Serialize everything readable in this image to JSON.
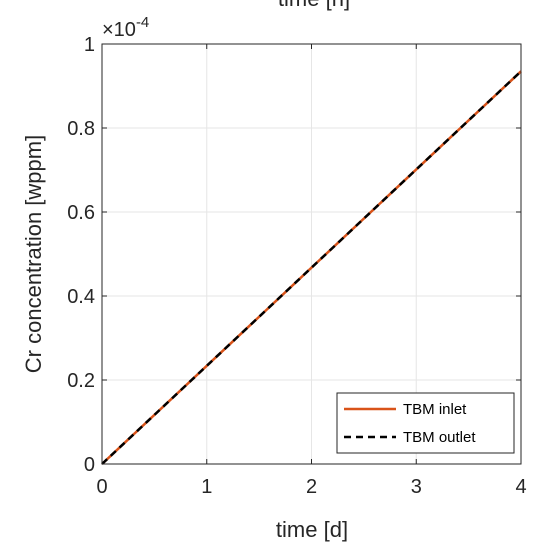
{
  "chart_data": {
    "type": "line",
    "top_title": "time [h]",
    "xlabel": "time [d]",
    "ylabel": "Cr concentration [wppm]",
    "exponent_label": "×10",
    "exponent_power": "-4",
    "xlim": [
      0,
      4
    ],
    "ylim": [
      0,
      1
    ],
    "xticks": [
      "0",
      "1",
      "2",
      "3",
      "4"
    ],
    "yticks": [
      "0",
      "0.2",
      "0.4",
      "0.6",
      "0.8",
      "1"
    ],
    "grid": true,
    "legend_position": "bottom-right",
    "series": [
      {
        "name": "TBM inlet",
        "color": "#D95319",
        "style": "solid",
        "x": [
          0,
          4
        ],
        "y": [
          0,
          0.935
        ]
      },
      {
        "name": "TBM outlet",
        "color": "#000000",
        "style": "dashed",
        "x": [
          0,
          4
        ],
        "y": [
          0,
          0.935
        ]
      }
    ]
  }
}
